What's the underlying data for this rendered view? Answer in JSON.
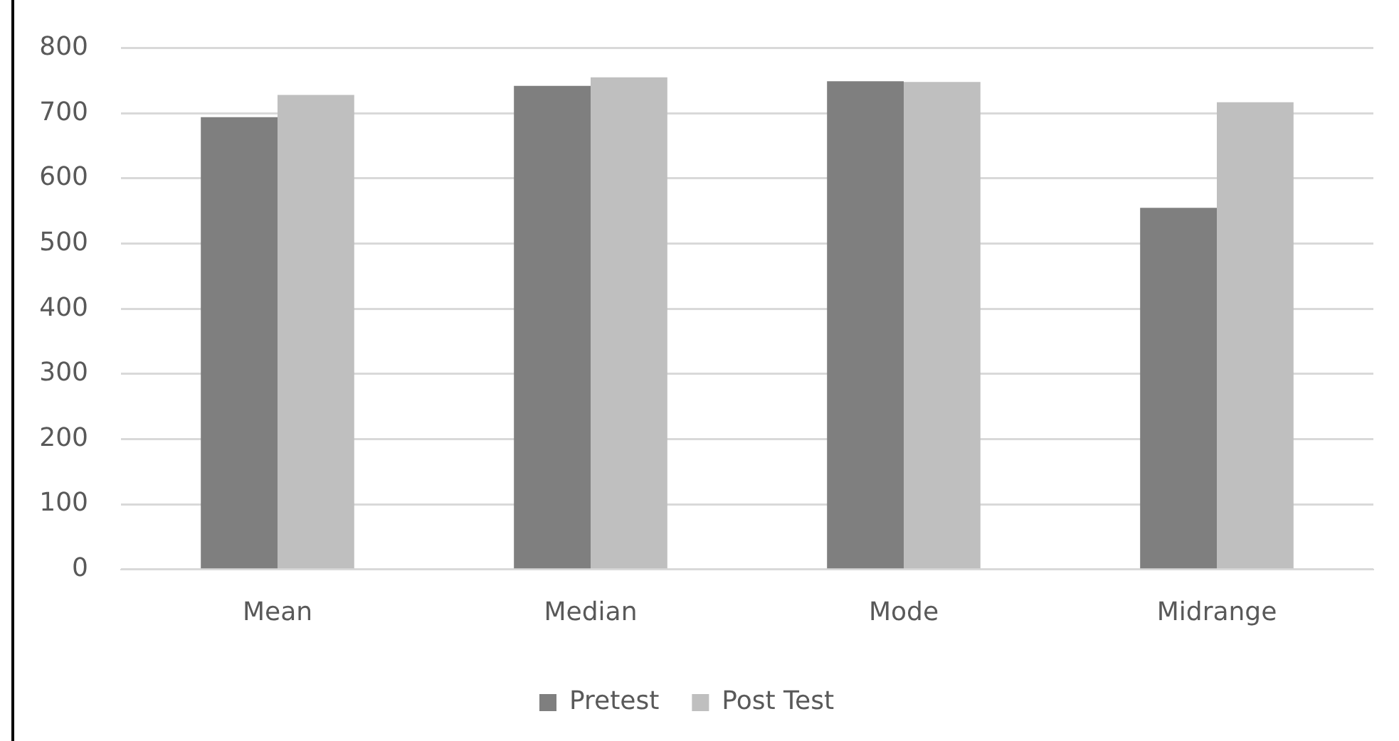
{
  "chart_data": {
    "type": "bar",
    "categories": [
      "Mean",
      "Median",
      "Mode",
      "Midrange"
    ],
    "series": [
      {
        "name": "Pretest",
        "color": "#7f7f7f",
        "values": [
          694,
          742,
          749,
          555
        ]
      },
      {
        "name": "Post Test",
        "color": "#bfbfbf",
        "values": [
          728,
          755,
          748,
          717
        ]
      }
    ],
    "ylim": [
      0,
      800
    ],
    "yticks": [
      0,
      100,
      200,
      300,
      400,
      500,
      600,
      700,
      800
    ],
    "grid": "y",
    "legend": "bottom"
  }
}
